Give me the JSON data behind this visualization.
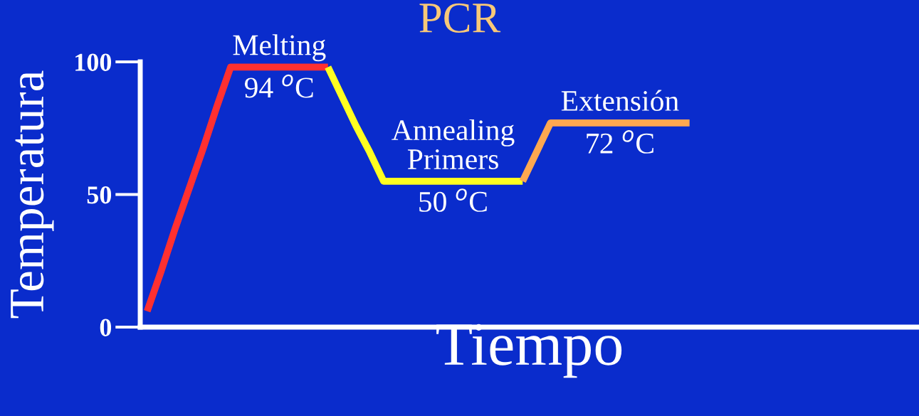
{
  "chart_data": {
    "type": "line",
    "title": "PCR",
    "xlabel": "Tiempo",
    "ylabel": "Temperatura",
    "categories": [
      null,
      null,
      null,
      null,
      null,
      null,
      null,
      null,
      null,
      null,
      null,
      null,
      null,
      null,
      null,
      null,
      null,
      null,
      null,
      null,
      null,
      null,
      null,
      null,
      null,
      null,
      null,
      null,
      null,
      null,
      null,
      null,
      null,
      null,
      null,
      null,
      null,
      null,
      null,
      null,
      null,
      null,
      null,
      null,
      null,
      null,
      null,
      null,
      null,
      null,
      null,
      null,
      null,
      null,
      null,
      null
    ],
    "series": [
      {
        "color": "#ff3030",
        "values": [
          6,
          21,
          37,
          52,
          67,
          83,
          98,
          98,
          98,
          98,
          98,
          98,
          98,
          98,
          null,
          null,
          null,
          null,
          null,
          null,
          null,
          null,
          null,
          null,
          null,
          null,
          null,
          null,
          null,
          null,
          null,
          null,
          null,
          null,
          null,
          null,
          null,
          null,
          null,
          null,
          null,
          null,
          null,
          null,
          null,
          null,
          null,
          null,
          null,
          null,
          null,
          null,
          null,
          null,
          null,
          null
        ]
      },
      {
        "color": "#ffff20",
        "values": [
          null,
          null,
          null,
          null,
          null,
          null,
          null,
          null,
          null,
          null,
          null,
          null,
          null,
          98,
          87,
          76,
          66,
          55,
          55,
          55,
          55,
          55,
          55,
          55,
          55,
          55,
          55,
          55,
          null,
          null,
          null,
          null,
          null,
          null,
          null,
          null,
          null,
          null,
          null,
          null,
          null,
          null,
          null,
          null,
          null,
          null,
          null,
          null,
          null,
          null,
          null,
          null,
          null,
          null,
          null,
          null
        ]
      },
      {
        "color": "#ffa850",
        "values": [
          null,
          null,
          null,
          null,
          null,
          null,
          null,
          null,
          null,
          null,
          null,
          null,
          null,
          null,
          null,
          null,
          null,
          null,
          null,
          null,
          null,
          null,
          null,
          null,
          null,
          null,
          null,
          55,
          66,
          77,
          77,
          77,
          77,
          77,
          77,
          77,
          77,
          77,
          77,
          77,
          null,
          null,
          null,
          null,
          null,
          null,
          null,
          null,
          null,
          null,
          null,
          null,
          null,
          null,
          null,
          null
        ]
      }
    ],
    "ylim": [
      0,
      100
    ],
    "yticks": [
      0,
      50,
      100
    ],
    "tick_labels": "y",
    "grid": false,
    "legend": false,
    "marker": "none",
    "line_style": "solid",
    "annotations": [
      "Melting",
      "94 $^{o}$C",
      "Annealing\nPrimers",
      "50 $^{o}$C",
      "Extensión",
      "72 $^{o}$C"
    ]
  }
}
